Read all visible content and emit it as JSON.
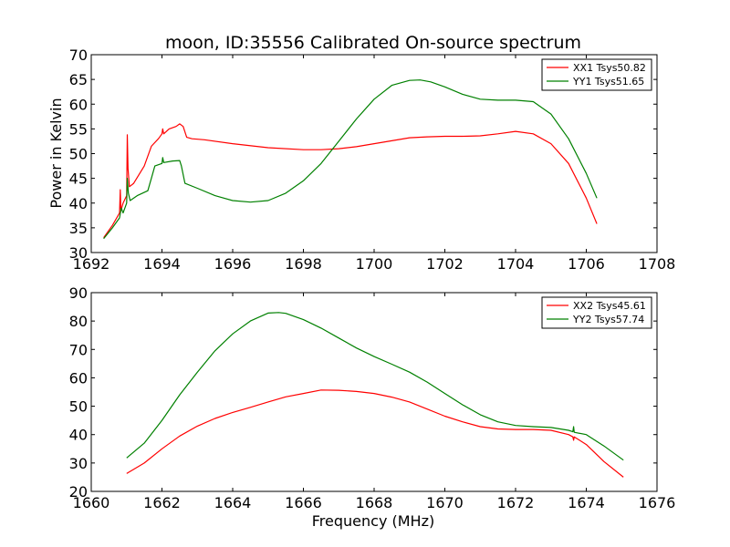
{
  "chart_data": [
    {
      "type": "line",
      "title": "moon, ID:35556 Calibrated On-source spectrum",
      "xlabel": "",
      "ylabel": "Power in Kelvin",
      "xlim": [
        1692,
        1708
      ],
      "ylim": [
        30,
        70
      ],
      "xticks": [
        1692,
        1694,
        1696,
        1698,
        1700,
        1702,
        1704,
        1706,
        1708
      ],
      "yticks": [
        30,
        35,
        40,
        45,
        50,
        55,
        60,
        65,
        70
      ],
      "grid": false,
      "legend_position": "top-right",
      "series": [
        {
          "name": "XX1 Tsys50.82",
          "color": "#ff0000",
          "points": [
            [
              1692.35,
              33.0
            ],
            [
              1692.6,
              35.5
            ],
            [
              1692.8,
              38.0
            ],
            [
              1692.82,
              42.7
            ],
            [
              1692.84,
              38.5
            ],
            [
              1692.9,
              40.0
            ],
            [
              1693.0,
              41.5
            ],
            [
              1693.02,
              53.8
            ],
            [
              1693.04,
              47.0
            ],
            [
              1693.08,
              43.3
            ],
            [
              1693.2,
              44.0
            ],
            [
              1693.5,
              47.5
            ],
            [
              1693.7,
              51.5
            ],
            [
              1693.9,
              53.0
            ],
            [
              1694.0,
              54.0
            ],
            [
              1694.02,
              55.0
            ],
            [
              1694.05,
              54.0
            ],
            [
              1694.2,
              55.0
            ],
            [
              1694.4,
              55.5
            ],
            [
              1694.5,
              56.0
            ],
            [
              1694.6,
              55.5
            ],
            [
              1694.7,
              53.3
            ],
            [
              1694.85,
              53.0
            ],
            [
              1695.2,
              52.8
            ],
            [
              1696.0,
              52.0
            ],
            [
              1697.0,
              51.2
            ],
            [
              1698.0,
              50.8
            ],
            [
              1698.5,
              50.8
            ],
            [
              1699.0,
              51.0
            ],
            [
              1699.5,
              51.4
            ],
            [
              1700.0,
              52.0
            ],
            [
              1701.0,
              53.2
            ],
            [
              1701.5,
              53.4
            ],
            [
              1702.0,
              53.5
            ],
            [
              1702.5,
              53.5
            ],
            [
              1703.0,
              53.6
            ],
            [
              1703.5,
              54.0
            ],
            [
              1704.0,
              54.5
            ],
            [
              1704.5,
              54.0
            ],
            [
              1705.0,
              52.0
            ],
            [
              1705.5,
              48.0
            ],
            [
              1706.0,
              41.0
            ],
            [
              1706.3,
              35.8
            ]
          ]
        },
        {
          "name": "YY1 Tsys51.65",
          "color": "#008000",
          "points": [
            [
              1692.35,
              32.8
            ],
            [
              1692.6,
              35.0
            ],
            [
              1692.8,
              37.0
            ],
            [
              1692.85,
              39.0
            ],
            [
              1692.9,
              38.0
            ],
            [
              1693.0,
              40.0
            ],
            [
              1693.02,
              45.0
            ],
            [
              1693.05,
              42.0
            ],
            [
              1693.1,
              40.5
            ],
            [
              1693.3,
              41.5
            ],
            [
              1693.6,
              42.5
            ],
            [
              1693.7,
              45.0
            ],
            [
              1693.8,
              47.5
            ],
            [
              1694.0,
              48.0
            ],
            [
              1694.02,
              49.2
            ],
            [
              1694.05,
              48.2
            ],
            [
              1694.3,
              48.5
            ],
            [
              1694.5,
              48.6
            ],
            [
              1694.55,
              47.5
            ],
            [
              1694.65,
              44.0
            ],
            [
              1695.0,
              43.0
            ],
            [
              1695.5,
              41.5
            ],
            [
              1696.0,
              40.5
            ],
            [
              1696.5,
              40.2
            ],
            [
              1697.0,
              40.5
            ],
            [
              1697.5,
              42.0
            ],
            [
              1698.0,
              44.5
            ],
            [
              1698.5,
              48.0
            ],
            [
              1699.0,
              52.5
            ],
            [
              1699.5,
              57.0
            ],
            [
              1700.0,
              61.0
            ],
            [
              1700.5,
              63.8
            ],
            [
              1701.0,
              64.8
            ],
            [
              1701.3,
              64.9
            ],
            [
              1701.6,
              64.5
            ],
            [
              1702.0,
              63.5
            ],
            [
              1702.5,
              62.0
            ],
            [
              1703.0,
              61.0
            ],
            [
              1703.5,
              60.8
            ],
            [
              1704.0,
              60.8
            ],
            [
              1704.5,
              60.5
            ],
            [
              1705.0,
              58.0
            ],
            [
              1705.5,
              53.0
            ],
            [
              1706.0,
              46.0
            ],
            [
              1706.3,
              41.0
            ]
          ]
        }
      ]
    },
    {
      "type": "line",
      "title": "",
      "xlabel": "Frequency (MHz)",
      "ylabel": "",
      "xlim": [
        1660,
        1676
      ],
      "ylim": [
        20,
        90
      ],
      "xticks": [
        1660,
        1662,
        1664,
        1666,
        1668,
        1670,
        1672,
        1674,
        1676
      ],
      "yticks": [
        20,
        30,
        40,
        50,
        60,
        70,
        80,
        90
      ],
      "grid": false,
      "legend_position": "top-right",
      "series": [
        {
          "name": "XX2 Tsys45.61",
          "color": "#ff0000",
          "points": [
            [
              1661.0,
              26.3
            ],
            [
              1661.5,
              30.0
            ],
            [
              1662.0,
              35.0
            ],
            [
              1662.5,
              39.5
            ],
            [
              1663.0,
              43.0
            ],
            [
              1663.5,
              45.7
            ],
            [
              1664.0,
              47.8
            ],
            [
              1664.5,
              49.6
            ],
            [
              1665.0,
              51.5
            ],
            [
              1665.5,
              53.3
            ],
            [
              1666.0,
              54.5
            ],
            [
              1666.5,
              55.7
            ],
            [
              1667.0,
              55.6
            ],
            [
              1667.5,
              55.2
            ],
            [
              1668.0,
              54.5
            ],
            [
              1668.5,
              53.2
            ],
            [
              1669.0,
              51.5
            ],
            [
              1669.5,
              49.0
            ],
            [
              1670.0,
              46.5
            ],
            [
              1670.5,
              44.5
            ],
            [
              1671.0,
              42.8
            ],
            [
              1671.5,
              42.0
            ],
            [
              1672.0,
              41.8
            ],
            [
              1672.5,
              41.8
            ],
            [
              1673.0,
              41.5
            ],
            [
              1673.5,
              40.0
            ],
            [
              1673.62,
              39.2
            ],
            [
              1673.64,
              38.0
            ],
            [
              1673.66,
              39.2
            ],
            [
              1674.0,
              36.5
            ],
            [
              1674.5,
              30.5
            ],
            [
              1675.05,
              25.0
            ]
          ]
        },
        {
          "name": "YY2 Tsys57.74",
          "color": "#008000",
          "points": [
            [
              1661.0,
              31.8
            ],
            [
              1661.5,
              37.0
            ],
            [
              1662.0,
              45.0
            ],
            [
              1662.5,
              54.0
            ],
            [
              1663.0,
              62.0
            ],
            [
              1663.5,
              69.5
            ],
            [
              1664.0,
              75.5
            ],
            [
              1664.5,
              80.0
            ],
            [
              1665.0,
              82.8
            ],
            [
              1665.3,
              83.0
            ],
            [
              1665.5,
              82.7
            ],
            [
              1666.0,
              80.5
            ],
            [
              1666.5,
              77.5
            ],
            [
              1667.0,
              74.0
            ],
            [
              1667.5,
              70.5
            ],
            [
              1668.0,
              67.5
            ],
            [
              1668.5,
              64.8
            ],
            [
              1669.0,
              62.0
            ],
            [
              1669.5,
              58.5
            ],
            [
              1670.0,
              54.5
            ],
            [
              1670.5,
              50.5
            ],
            [
              1671.0,
              47.0
            ],
            [
              1671.5,
              44.5
            ],
            [
              1672.0,
              43.2
            ],
            [
              1672.5,
              42.8
            ],
            [
              1673.0,
              42.5
            ],
            [
              1673.5,
              41.5
            ],
            [
              1673.62,
              41.0
            ],
            [
              1673.64,
              42.8
            ],
            [
              1673.66,
              40.8
            ],
            [
              1674.0,
              40.0
            ],
            [
              1674.5,
              36.0
            ],
            [
              1675.05,
              31.0
            ]
          ]
        }
      ]
    }
  ]
}
